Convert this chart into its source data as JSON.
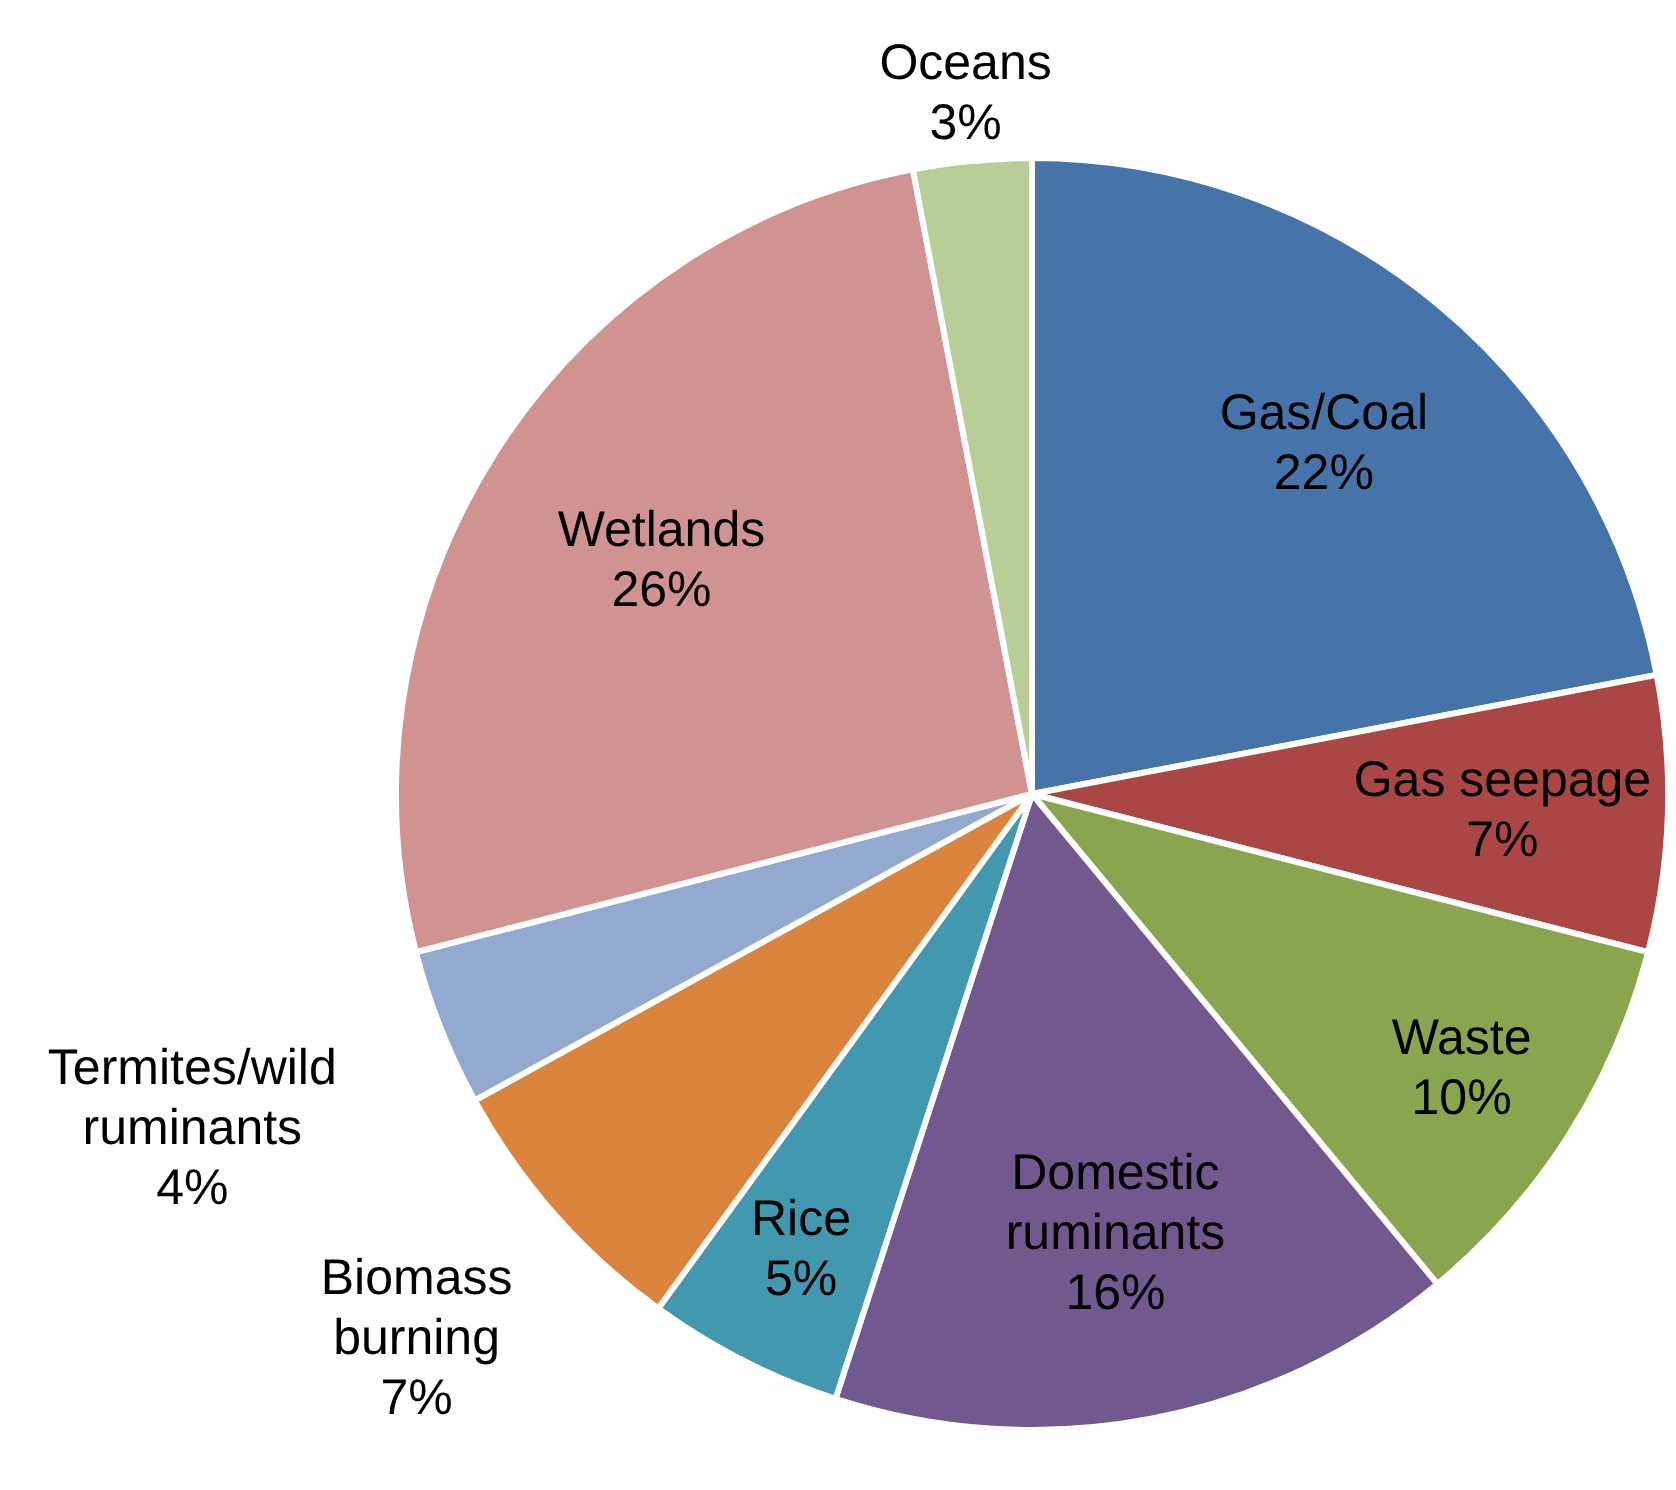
{
  "chart_data": {
    "type": "pie",
    "categories": [
      "Gas/Coal",
      "Gas seepage",
      "Waste",
      "Domestic ruminants",
      "Rice",
      "Biomass burning",
      "Termites/wild ruminants",
      "Wetlands",
      "Oceans"
    ],
    "values": [
      22,
      7,
      10,
      16,
      5,
      7,
      4,
      26,
      3
    ],
    "value_labels": [
      "22%",
      "7%",
      "10%",
      "16%",
      "5%",
      "7%",
      "4%",
      "26%",
      "3%"
    ],
    "colors": [
      "#4674aa",
      "#aa4744",
      "#89a54e",
      "#71588f",
      "#4198af",
      "#db843d",
      "#93a9cf",
      "#d19392",
      "#b9cd96"
    ],
    "legend": false
  }
}
